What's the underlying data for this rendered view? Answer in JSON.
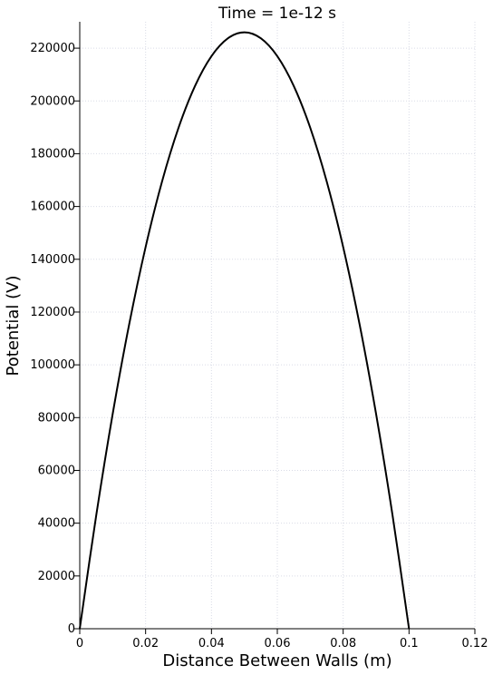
{
  "chart_data": {
    "type": "line",
    "title": "Time = 1e-12 s",
    "xlabel": "Distance Between Walls (m)",
    "ylabel": "Potential (V)",
    "xlim": [
      0,
      0.12
    ],
    "ylim": [
      0,
      230000
    ],
    "xticks": [
      0,
      0.02,
      0.04,
      0.06,
      0.08,
      0.1,
      0.12
    ],
    "xtick_labels": [
      "0",
      "0.02",
      "0.04",
      "0.06",
      "0.08",
      "0.1",
      "0.12"
    ],
    "yticks": [
      0,
      20000,
      40000,
      60000,
      80000,
      100000,
      120000,
      140000,
      160000,
      180000,
      200000,
      220000
    ],
    "ytick_labels": [
      "0",
      "20000",
      "40000",
      "60000",
      "80000",
      "100000",
      "120000",
      "140000",
      "160000",
      "180000",
      "200000",
      "220000"
    ],
    "grid": true,
    "series": [
      {
        "color": "#000000",
        "x": [
          0,
          0.005,
          0.01,
          0.015,
          0.02,
          0.025,
          0.03,
          0.035,
          0.04,
          0.045,
          0.05,
          0.055,
          0.06,
          0.065,
          0.07,
          0.075,
          0.08,
          0.085,
          0.09,
          0.095,
          0.1
        ],
        "y": [
          0,
          42940,
          81360,
          115260,
          144640,
          169500,
          189840,
          205660,
          216960,
          223740,
          226000,
          223740,
          216960,
          205660,
          189840,
          169500,
          144640,
          115260,
          81360,
          42940,
          0
        ]
      }
    ]
  }
}
